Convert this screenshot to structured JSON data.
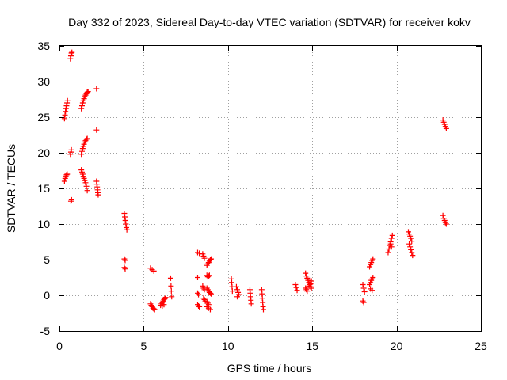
{
  "chart_data": {
    "type": "scatter",
    "title": "Day 332 of 2023, Sidereal Day-to-day VTEC variation (SDTVAR) for receiver kokv",
    "xlabel": "GPS time / hours",
    "ylabel": "SDTVAR / TECUs",
    "xlim": [
      0,
      25
    ],
    "ylim": [
      -5,
      35
    ],
    "xticks": [
      0,
      5,
      10,
      15,
      20,
      25
    ],
    "yticks": [
      -5,
      0,
      5,
      10,
      15,
      20,
      25,
      30,
      35
    ],
    "xtick_labels": [
      "0",
      "5",
      "10",
      "15",
      "20",
      "25"
    ],
    "ytick_labels": [
      "-5",
      "0",
      "5",
      "10",
      "15",
      "20",
      "25",
      "30",
      "35"
    ],
    "grid": true,
    "marker": "+",
    "series": [
      {
        "name": "SDTVAR",
        "color": "#ff0000",
        "points": [
          [
            0.3,
            24.8
          ],
          [
            0.33,
            25.3
          ],
          [
            0.36,
            25.8
          ],
          [
            0.39,
            26.2
          ],
          [
            0.42,
            26.6
          ],
          [
            0.45,
            27.0
          ],
          [
            0.48,
            27.3
          ],
          [
            0.3,
            16.0
          ],
          [
            0.34,
            16.4
          ],
          [
            0.38,
            16.7
          ],
          [
            0.42,
            16.9
          ],
          [
            0.46,
            17.0
          ],
          [
            0.65,
            33.2
          ],
          [
            0.68,
            33.6
          ],
          [
            0.71,
            34.0
          ],
          [
            0.74,
            34.1
          ],
          [
            0.65,
            19.8
          ],
          [
            0.68,
            20.1
          ],
          [
            0.71,
            20.4
          ],
          [
            0.68,
            13.2
          ],
          [
            0.72,
            13.4
          ],
          [
            1.3,
            26.2
          ],
          [
            1.34,
            26.6
          ],
          [
            1.38,
            27.0
          ],
          [
            1.42,
            27.3
          ],
          [
            1.46,
            27.6
          ],
          [
            1.5,
            27.9
          ],
          [
            1.55,
            28.1
          ],
          [
            1.6,
            28.3
          ],
          [
            1.65,
            28.5
          ],
          [
            1.7,
            28.6
          ],
          [
            1.3,
            19.8
          ],
          [
            1.34,
            20.2
          ],
          [
            1.38,
            20.6
          ],
          [
            1.42,
            20.9
          ],
          [
            1.46,
            21.2
          ],
          [
            1.5,
            21.5
          ],
          [
            1.55,
            21.7
          ],
          [
            1.6,
            21.9
          ],
          [
            1.65,
            22.0
          ],
          [
            1.3,
            17.6
          ],
          [
            1.34,
            17.3
          ],
          [
            1.38,
            17.0
          ],
          [
            1.42,
            16.7
          ],
          [
            1.46,
            16.4
          ],
          [
            1.5,
            16.1
          ],
          [
            1.55,
            15.8
          ],
          [
            1.6,
            15.3
          ],
          [
            1.65,
            14.7
          ],
          [
            2.2,
            29.0
          ],
          [
            2.2,
            23.2
          ],
          [
            2.2,
            16.0
          ],
          [
            2.22,
            15.6
          ],
          [
            2.24,
            15.2
          ],
          [
            2.26,
            14.8
          ],
          [
            2.28,
            14.4
          ],
          [
            2.3,
            14.1
          ],
          [
            3.85,
            11.5
          ],
          [
            3.88,
            11.0
          ],
          [
            3.91,
            10.5
          ],
          [
            3.94,
            10.0
          ],
          [
            3.97,
            9.5
          ],
          [
            4.0,
            9.2
          ],
          [
            3.85,
            5.1
          ],
          [
            3.9,
            4.9
          ],
          [
            3.85,
            3.9
          ],
          [
            3.9,
            3.7
          ],
          [
            5.4,
            3.8
          ],
          [
            5.5,
            3.6
          ],
          [
            5.6,
            3.4
          ],
          [
            5.4,
            -1.2
          ],
          [
            5.45,
            -1.4
          ],
          [
            5.5,
            -1.6
          ],
          [
            5.55,
            -1.8
          ],
          [
            5.6,
            -1.9
          ],
          [
            5.65,
            -2.0
          ],
          [
            6.0,
            -1.4
          ],
          [
            6.05,
            -1.2
          ],
          [
            6.1,
            -1.0
          ],
          [
            6.15,
            -0.8
          ],
          [
            6.2,
            -0.6
          ],
          [
            6.25,
            -0.5
          ],
          [
            6.3,
            -0.3
          ],
          [
            6.1,
            -1.5
          ],
          [
            6.2,
            -1.3
          ],
          [
            6.6,
            2.4
          ],
          [
            6.62,
            1.3
          ],
          [
            6.64,
            0.6
          ],
          [
            6.66,
            -0.2
          ],
          [
            8.2,
            6.0
          ],
          [
            8.3,
            5.9
          ],
          [
            8.2,
            2.5
          ],
          [
            8.2,
            0.3
          ],
          [
            8.25,
            0.1
          ],
          [
            8.2,
            -1.3
          ],
          [
            8.25,
            -1.5
          ],
          [
            8.3,
            -1.6
          ],
          [
            8.5,
            5.8
          ],
          [
            8.55,
            5.5
          ],
          [
            8.6,
            5.2
          ],
          [
            8.5,
            1.3
          ],
          [
            8.55,
            1.0
          ],
          [
            8.6,
            0.8
          ],
          [
            8.55,
            -0.4
          ],
          [
            8.6,
            -0.6
          ],
          [
            8.65,
            -0.8
          ],
          [
            8.75,
            4.2
          ],
          [
            8.8,
            4.4
          ],
          [
            8.85,
            4.6
          ],
          [
            8.9,
            4.8
          ],
          [
            8.95,
            5.0
          ],
          [
            9.0,
            5.1
          ],
          [
            8.75,
            2.8
          ],
          [
            8.8,
            2.6
          ],
          [
            8.85,
            2.7
          ],
          [
            8.9,
            2.8
          ],
          [
            8.75,
            1.0
          ],
          [
            8.8,
            0.8
          ],
          [
            8.85,
            0.6
          ],
          [
            8.9,
            0.4
          ],
          [
            8.95,
            0.3
          ],
          [
            9.0,
            0.2
          ],
          [
            8.75,
            -0.9
          ],
          [
            8.8,
            -1.1
          ],
          [
            8.85,
            -1.3
          ],
          [
            8.75,
            -1.6
          ],
          [
            8.85,
            -1.8
          ],
          [
            8.95,
            -2.0
          ],
          [
            10.2,
            2.3
          ],
          [
            10.22,
            1.8
          ],
          [
            10.24,
            1.2
          ],
          [
            10.26,
            0.6
          ],
          [
            10.5,
            1.2
          ],
          [
            10.55,
            0.8
          ],
          [
            10.6,
            0.4
          ],
          [
            10.65,
            0.1
          ],
          [
            10.55,
            -0.2
          ],
          [
            11.3,
            0.8
          ],
          [
            11.32,
            0.3
          ],
          [
            11.34,
            -0.2
          ],
          [
            11.36,
            -0.7
          ],
          [
            11.38,
            -1.2
          ],
          [
            12.0,
            0.8
          ],
          [
            12.02,
            0.2
          ],
          [
            12.04,
            -0.4
          ],
          [
            12.06,
            -1.0
          ],
          [
            12.08,
            -1.6
          ],
          [
            12.1,
            -2.0
          ],
          [
            14.0,
            1.5
          ],
          [
            14.05,
            1.1
          ],
          [
            14.1,
            0.7
          ],
          [
            14.6,
            3.1
          ],
          [
            14.65,
            2.7
          ],
          [
            14.7,
            2.4
          ],
          [
            14.75,
            2.1
          ],
          [
            14.8,
            1.8
          ],
          [
            14.85,
            1.5
          ],
          [
            14.9,
            1.2
          ],
          [
            14.95,
            1.0
          ],
          [
            14.6,
            1.0
          ],
          [
            14.65,
            0.8
          ],
          [
            14.7,
            0.6
          ],
          [
            14.8,
            1.3
          ],
          [
            14.9,
            1.6
          ],
          [
            14.95,
            2.0
          ],
          [
            18.0,
            1.5
          ],
          [
            18.05,
            1.0
          ],
          [
            18.1,
            0.5
          ],
          [
            18.0,
            -0.8
          ],
          [
            18.05,
            -1.0
          ],
          [
            18.4,
            4.0
          ],
          [
            18.45,
            4.3
          ],
          [
            18.5,
            4.6
          ],
          [
            18.55,
            4.9
          ],
          [
            18.6,
            5.1
          ],
          [
            18.4,
            1.5
          ],
          [
            18.45,
            1.8
          ],
          [
            18.5,
            2.1
          ],
          [
            18.55,
            2.3
          ],
          [
            18.6,
            2.5
          ],
          [
            18.45,
            0.9
          ],
          [
            18.55,
            0.7
          ],
          [
            19.5,
            6.0
          ],
          [
            19.55,
            6.5
          ],
          [
            19.6,
            7.0
          ],
          [
            19.65,
            7.5
          ],
          [
            19.7,
            8.0
          ],
          [
            19.75,
            8.4
          ],
          [
            19.7,
            6.8
          ],
          [
            19.65,
            7.2
          ],
          [
            20.7,
            8.9
          ],
          [
            20.75,
            8.6
          ],
          [
            20.8,
            8.3
          ],
          [
            20.85,
            8.0
          ],
          [
            20.9,
            7.6
          ],
          [
            20.75,
            7.2
          ],
          [
            20.8,
            6.8
          ],
          [
            20.85,
            6.4
          ],
          [
            20.9,
            6.0
          ],
          [
            20.95,
            5.6
          ],
          [
            22.75,
            24.6
          ],
          [
            22.8,
            24.3
          ],
          [
            22.85,
            24.0
          ],
          [
            22.9,
            23.7
          ],
          [
            22.95,
            23.4
          ],
          [
            22.75,
            11.2
          ],
          [
            22.8,
            10.8
          ],
          [
            22.85,
            10.5
          ],
          [
            22.9,
            10.2
          ],
          [
            22.95,
            10.0
          ]
        ]
      }
    ]
  }
}
